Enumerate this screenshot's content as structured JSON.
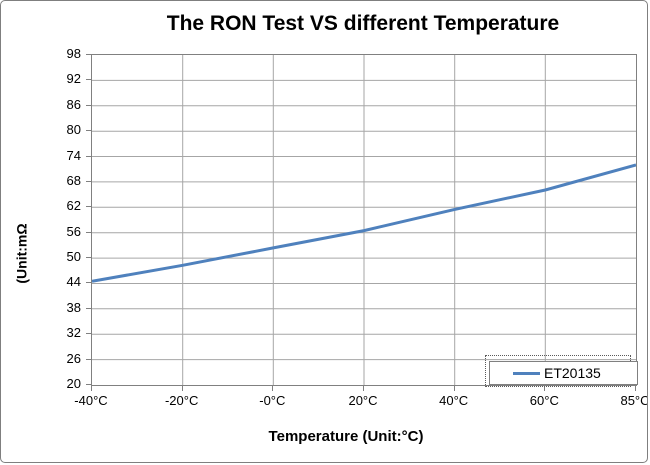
{
  "chart_data": {
    "type": "line",
    "title": "The RON Test VS different Temperature",
    "xlabel": "Temperature (Unit:°C)",
    "ylabel": "(Unit:mΩ",
    "categories": [
      "-40°C",
      "-20°C",
      "-0°C",
      "20°C",
      "40°C",
      "60°C",
      "85°C"
    ],
    "series": [
      {
        "name": "ET20135",
        "color": "#4F81BD",
        "values": [
          44.5,
          48.3,
          52.4,
          56.5,
          61.5,
          66.1,
          72.0
        ]
      }
    ],
    "ylim": [
      20,
      98
    ],
    "y_ticks": [
      20,
      26,
      32,
      38,
      44,
      50,
      56,
      62,
      68,
      74,
      80,
      86,
      92,
      98
    ],
    "grid": true,
    "gridline_color": "#A6A6A6",
    "axis_color": "#808080",
    "legend_position": "inside-bottom-right",
    "background": "#FFFFFF"
  }
}
